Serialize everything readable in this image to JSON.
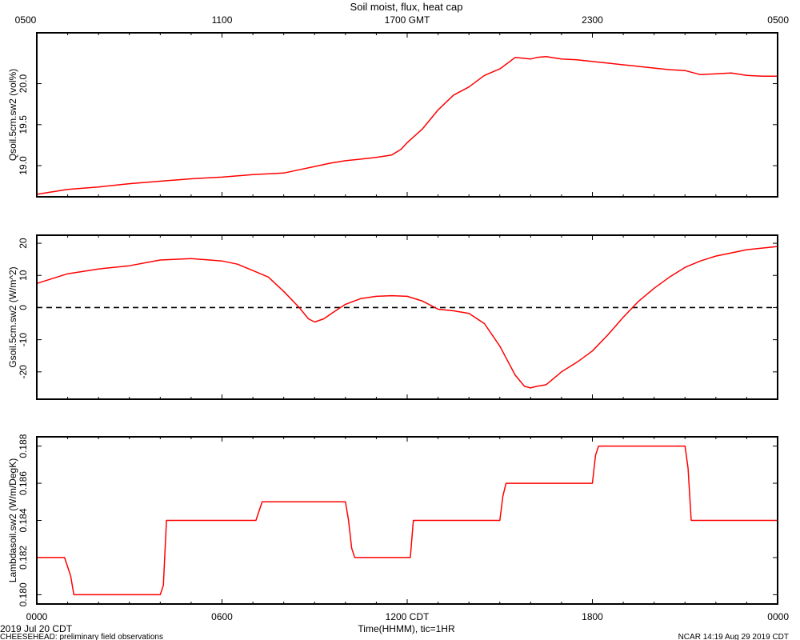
{
  "title": "Soil moist, flux, heat cap",
  "top_axis": {
    "ticks": [
      "0500",
      "1100",
      "1700 GMT",
      "2300",
      "0500"
    ]
  },
  "bottom_axis": {
    "ticks": [
      "0000",
      "0600",
      "1200 CDT",
      "1800",
      "0000"
    ],
    "label": "Time(HHMM), tic=1HR"
  },
  "footer": {
    "date": "2019 Jul 20 CDT",
    "project": "CHEESEHEAD: preliminary field observations",
    "credit": "NCAR 14:19 Aug 29 2019 CDT"
  },
  "colors": {
    "series": "#ff0000",
    "axes": "#000000",
    "zero_line": "#000000"
  },
  "chart_data": [
    {
      "type": "line",
      "ylabel": "Qsoil.5cm.sw2 (vol%)",
      "ylim": [
        18.62,
        20.62
      ],
      "yticks": [
        19.0,
        19.5,
        20.0
      ],
      "ytick_labels": [
        "19.0",
        "19.5",
        "20.0"
      ],
      "xlim": [
        0,
        24
      ],
      "series": [
        {
          "x": [
            0,
            1,
            2,
            3,
            4,
            5,
            6,
            7,
            7.5,
            8,
            8.5,
            9,
            9.5,
            10,
            10.5,
            11,
            11.5,
            11.8,
            12,
            12.5,
            13,
            13.5,
            14,
            14.5,
            15,
            15.5,
            16,
            16.2,
            16.5,
            17,
            17.5,
            18,
            18.5,
            19,
            19.5,
            20,
            20.5,
            21,
            21.5,
            22,
            22.5,
            23,
            23.5,
            24
          ],
          "y": [
            18.65,
            18.71,
            18.74,
            18.78,
            18.81,
            18.84,
            18.86,
            18.89,
            18.9,
            18.91,
            18.95,
            18.99,
            19.03,
            19.06,
            19.08,
            19.1,
            19.13,
            19.2,
            19.28,
            19.45,
            19.68,
            19.86,
            19.96,
            20.1,
            20.18,
            20.32,
            20.3,
            20.32,
            20.33,
            20.3,
            20.29,
            20.27,
            20.25,
            20.23,
            20.21,
            20.19,
            20.17,
            20.16,
            20.11,
            20.12,
            20.13,
            20.1,
            20.09,
            20.09
          ]
        }
      ]
    },
    {
      "type": "line",
      "ylabel": "Gsoil.5cm.sw2 (W/m^2)",
      "ylim": [
        -28.5,
        22.5
      ],
      "yticks": [
        -20,
        -10,
        0,
        10,
        20
      ],
      "ytick_labels": [
        "-20",
        "-10",
        "0",
        "10",
        "20"
      ],
      "reference_line": 0,
      "xlim": [
        0,
        24
      ],
      "series": [
        {
          "x": [
            0,
            1,
            2,
            3,
            4,
            5,
            6,
            6.5,
            7,
            7.5,
            8,
            8.5,
            8.8,
            9,
            9.3,
            9.6,
            10,
            10.5,
            11,
            11.5,
            12,
            12.5,
            13,
            13.5,
            14,
            14.5,
            15,
            15.5,
            15.8,
            16,
            16.2,
            16.5,
            17,
            17.5,
            18,
            18.5,
            19,
            19.5,
            20,
            20.5,
            21,
            21.5,
            22,
            22.5,
            23,
            23.5,
            24
          ],
          "y": [
            7.5,
            10.5,
            12,
            13,
            14.8,
            15.2,
            14.5,
            13.5,
            11.5,
            9.5,
            5,
            0,
            -3.5,
            -4.5,
            -3.5,
            -1.5,
            1,
            2.8,
            3.5,
            3.7,
            3.5,
            2,
            -0.5,
            -1,
            -1.8,
            -5,
            -12,
            -21,
            -24.5,
            -25,
            -24.5,
            -24,
            -20,
            -17,
            -13.5,
            -8.5,
            -3,
            2,
            6,
            9.5,
            12.5,
            14.5,
            16,
            17,
            18,
            18.5,
            19
          ]
        }
      ]
    },
    {
      "type": "line",
      "ylabel": "Lambdasoil.sw2 (W/m/DegK)",
      "ylim": [
        0.1795,
        0.1885
      ],
      "yticks": [
        0.18,
        0.182,
        0.184,
        0.186,
        0.188
      ],
      "ytick_labels": [
        "0.180",
        "0.182",
        "0.184",
        "0.186",
        "0.188"
      ],
      "xlim": [
        0,
        24
      ],
      "series": [
        {
          "x": [
            0,
            0.9,
            1,
            1.1,
            1.2,
            4.0,
            4.1,
            4.2,
            7.1,
            7.2,
            7.3,
            10.0,
            10.1,
            10.2,
            10.3,
            12.1,
            12.2,
            15.0,
            15.1,
            15.2,
            18.0,
            18.1,
            18.2,
            21.0,
            21.1,
            21.2,
            24
          ],
          "y": [
            0.182,
            0.182,
            0.1815,
            0.181,
            0.18,
            0.18,
            0.1805,
            0.184,
            0.184,
            0.1845,
            0.185,
            0.185,
            0.184,
            0.1825,
            0.182,
            0.182,
            0.184,
            0.184,
            0.1853,
            0.186,
            0.186,
            0.1875,
            0.188,
            0.188,
            0.1868,
            0.184,
            0.184
          ]
        }
      ]
    }
  ]
}
